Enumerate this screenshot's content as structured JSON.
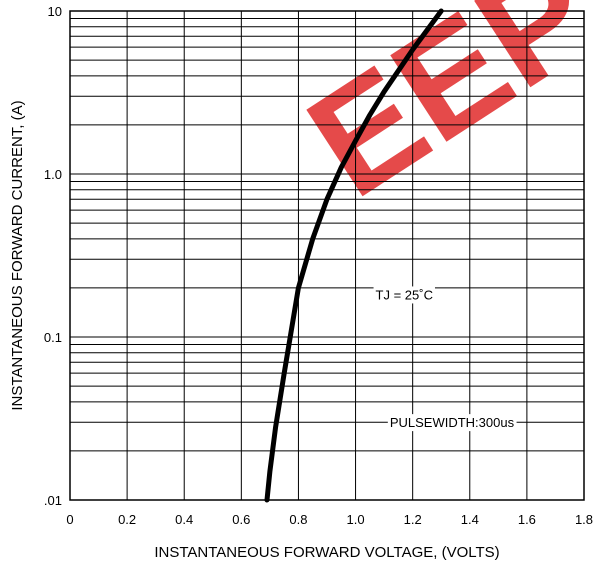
{
  "chart_data": {
    "type": "line",
    "xlabel": "INSTANTANEOUS FORWARD VOLTAGE, (VOLTS)",
    "ylabel": "INSTANTANEOUS  FORWARD CURRENT, (A)",
    "xlim": [
      0,
      1.8
    ],
    "ylim": [
      0.01,
      10
    ],
    "yscale": "log",
    "grid": true,
    "x_ticks": [
      "0",
      "0.2",
      "0.4",
      "0.6",
      "0.8",
      "1.0",
      "1.2",
      "1.4",
      "1.6",
      "1.8"
    ],
    "y_ticks": [
      {
        "value": 0.01,
        "label": ".01"
      },
      {
        "value": 0.1,
        "label": "0.1"
      },
      {
        "value": 1,
        "label": "1.0"
      },
      {
        "value": 10,
        "label": "10"
      }
    ],
    "series": [
      {
        "x": [
          0.69,
          0.7,
          0.72,
          0.75,
          0.8,
          0.85,
          0.9,
          0.95,
          1.0,
          1.05,
          1.1,
          1.15,
          1.2,
          1.25,
          1.3
        ],
        "y": [
          0.01,
          0.015,
          0.028,
          0.06,
          0.2,
          0.4,
          0.7,
          1.1,
          1.6,
          2.3,
          3.2,
          4.3,
          5.8,
          7.6,
          10
        ],
        "color": "#000000"
      }
    ],
    "annotations": [
      {
        "text": "TJ = 25˚C",
        "x": 1.07,
        "y": 0.17
      },
      {
        "text": "PULSEWIDTH:300us",
        "x": 1.12,
        "y": 0.028
      }
    ]
  },
  "watermark": {
    "text": "EEP",
    "color": "#e02a2a"
  }
}
